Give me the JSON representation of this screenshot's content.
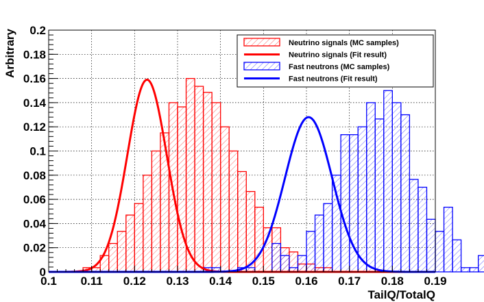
{
  "chart_data": {
    "type": "histogram",
    "xlabel": "TailQ/TotalQ",
    "ylabel": "Arbitrary",
    "xlim": [
      0.1,
      0.19
    ],
    "ylim": [
      0,
      0.2
    ],
    "xticks": [
      "0.1",
      "0.11",
      "0.12",
      "0.13",
      "0.14",
      "0.15",
      "0.16",
      "0.17",
      "0.18",
      "0.19"
    ],
    "yticks": [
      "0",
      "0.02",
      "0.04",
      "0.06",
      "0.08",
      "0.1",
      "0.12",
      "0.14",
      "0.16",
      "0.18",
      "0.2"
    ],
    "grid": true,
    "legend_position": "top-right",
    "bin_width": 0.002,
    "series": [
      {
        "name": "Neutrino signals (MC samples)",
        "style": "hatched-histogram",
        "color": "#ff0000",
        "bin_edges_start": 0.108,
        "values": [
          0.0035,
          0.0035,
          0.0135,
          0.0235,
          0.0335,
          0.047,
          0.0565,
          0.08,
          0.1,
          0.115,
          0.14,
          0.1365,
          0.16,
          0.1535,
          0.1485,
          0.14,
          0.12,
          0.1,
          0.083,
          0.0665,
          0.0535,
          0.0365,
          0.0365,
          0.02,
          0.0165,
          0.0065,
          0.0065,
          0.0035,
          0.0035
        ]
      },
      {
        "name": "Neutrino signals (Fit result)",
        "style": "gaussian-fit",
        "color": "#ff0000",
        "amplitude": 0.159,
        "mean": 0.1229,
        "sigma": 0.0046
      },
      {
        "name": "Fast neutrons (MC samples)",
        "style": "hatched-histogram",
        "color": "#0000ff",
        "bin_edges_start": 0.136,
        "values": [
          0.0035,
          0.0035,
          0,
          0,
          0.0035,
          0.0035,
          0,
          0,
          0.0235,
          0.0135,
          0.0035,
          0.0135,
          0.0335,
          0.047,
          0.0565,
          0.08,
          0.1135,
          0.1135,
          0.12,
          0.14,
          0.1265,
          0.15,
          0.14,
          0.13,
          0.0765,
          0.07,
          0.0435,
          0.0335,
          0.0535,
          0.0265,
          0.0035,
          0.0035,
          0.0135,
          0.0235,
          0.0035,
          0.0135,
          0.0035,
          0.0035
        ]
      },
      {
        "name": "Fast neutrons (Fit result)",
        "style": "gaussian-fit",
        "color": "#0000ff",
        "amplitude": 0.128,
        "mean": 0.1605,
        "sigma": 0.0055
      }
    ]
  }
}
